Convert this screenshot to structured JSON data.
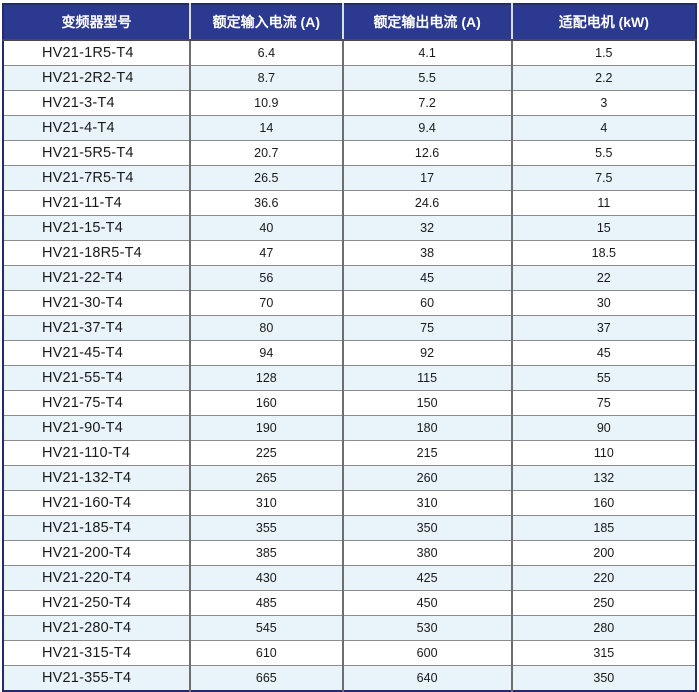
{
  "table": {
    "columns": [
      {
        "label": "变频器型号"
      },
      {
        "label": "额定输入电流 (A)"
      },
      {
        "label": "额定输出电流 (A)"
      },
      {
        "label": "适配电机 (kW)"
      }
    ],
    "rows": [
      [
        "HV21-1R5-T4",
        "6.4",
        "4.1",
        "1.5"
      ],
      [
        "HV21-2R2-T4",
        "8.7",
        "5.5",
        "2.2"
      ],
      [
        "HV21-3-T4",
        "10.9",
        "7.2",
        "3"
      ],
      [
        "HV21-4-T4",
        "14",
        "9.4",
        "4"
      ],
      [
        "HV21-5R5-T4",
        "20.7",
        "12.6",
        "5.5"
      ],
      [
        "HV21-7R5-T4",
        "26.5",
        "17",
        "7.5"
      ],
      [
        "HV21-11-T4",
        "36.6",
        "24.6",
        "11"
      ],
      [
        "HV21-15-T4",
        "40",
        "32",
        "15"
      ],
      [
        "HV21-18R5-T4",
        "47",
        "38",
        "18.5"
      ],
      [
        "HV21-22-T4",
        "56",
        "45",
        "22"
      ],
      [
        "HV21-30-T4",
        "70",
        "60",
        "30"
      ],
      [
        "HV21-37-T4",
        "80",
        "75",
        "37"
      ],
      [
        "HV21-45-T4",
        "94",
        "92",
        "45"
      ],
      [
        "HV21-55-T4",
        "128",
        "115",
        "55"
      ],
      [
        "HV21-75-T4",
        "160",
        "150",
        "75"
      ],
      [
        "HV21-90-T4",
        "190",
        "180",
        "90"
      ],
      [
        "HV21-110-T4",
        "225",
        "215",
        "110"
      ],
      [
        "HV21-132-T4",
        "265",
        "260",
        "132"
      ],
      [
        "HV21-160-T4",
        "310",
        "310",
        "160"
      ],
      [
        "HV21-185-T4",
        "355",
        "350",
        "185"
      ],
      [
        "HV21-200-T4",
        "385",
        "380",
        "200"
      ],
      [
        "HV21-220-T4",
        "430",
        "425",
        "220"
      ],
      [
        "HV21-250-T4",
        "485",
        "450",
        "250"
      ],
      [
        "HV21-280-T4",
        "545",
        "530",
        "280"
      ],
      [
        "HV21-315-T4",
        "610",
        "600",
        "315"
      ],
      [
        "HV21-355-T4",
        "665",
        "640",
        "350"
      ]
    ]
  },
  "colors": {
    "header_bg": "#2b3990",
    "header_text": "#ffffff",
    "row_bg": "#ffffff",
    "row_alt_bg": "#e8f3fa",
    "grid_line": "#8c8c8c",
    "grid_line_vertical": "#6e6e6e",
    "outer_border": "#232c6b",
    "body_text": "#1a1a1a"
  }
}
